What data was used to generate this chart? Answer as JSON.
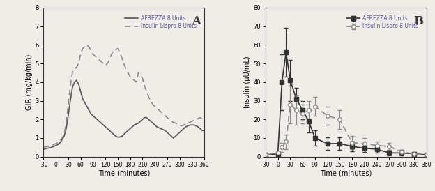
{
  "panel_a": {
    "title": "A",
    "xlabel": "Time (minutes)",
    "ylabel": "GIR (mg/kg/min)",
    "xlim": [
      -30,
      360
    ],
    "ylim": [
      0,
      8
    ],
    "xticks": [
      -30,
      0,
      30,
      60,
      90,
      120,
      150,
      180,
      210,
      240,
      270,
      300,
      330,
      360
    ],
    "yticks": [
      0,
      1,
      2,
      3,
      4,
      5,
      6,
      7,
      8
    ],
    "afrezza_x": [
      -30,
      -20,
      -10,
      0,
      5,
      10,
      15,
      20,
      25,
      30,
      35,
      40,
      45,
      50,
      55,
      60,
      65,
      70,
      75,
      80,
      85,
      90,
      95,
      100,
      105,
      110,
      115,
      120,
      125,
      130,
      135,
      140,
      145,
      150,
      155,
      160,
      165,
      170,
      175,
      180,
      185,
      190,
      195,
      200,
      205,
      210,
      215,
      220,
      225,
      230,
      235,
      240,
      245,
      250,
      255,
      260,
      265,
      270,
      275,
      280,
      285,
      290,
      295,
      300,
      305,
      310,
      315,
      320,
      325,
      330,
      335,
      340,
      345,
      350,
      355,
      360
    ],
    "afrezza_y": [
      0.4,
      0.45,
      0.5,
      0.6,
      0.65,
      0.75,
      0.9,
      1.1,
      1.5,
      2.2,
      3.0,
      3.7,
      4.0,
      4.1,
      3.9,
      3.5,
      3.1,
      2.9,
      2.7,
      2.5,
      2.3,
      2.2,
      2.1,
      2.0,
      1.9,
      1.8,
      1.7,
      1.6,
      1.5,
      1.4,
      1.3,
      1.2,
      1.1,
      1.05,
      1.05,
      1.1,
      1.2,
      1.3,
      1.4,
      1.5,
      1.6,
      1.7,
      1.75,
      1.8,
      1.9,
      2.0,
      2.1,
      2.1,
      2.0,
      1.9,
      1.8,
      1.7,
      1.6,
      1.55,
      1.5,
      1.45,
      1.4,
      1.3,
      1.2,
      1.1,
      1.0,
      1.1,
      1.2,
      1.3,
      1.4,
      1.5,
      1.6,
      1.65,
      1.7,
      1.7,
      1.7,
      1.65,
      1.6,
      1.5,
      1.4,
      1.4
    ],
    "lispro_x": [
      -30,
      -20,
      -10,
      0,
      5,
      10,
      15,
      20,
      25,
      30,
      35,
      40,
      45,
      50,
      55,
      60,
      65,
      70,
      75,
      80,
      85,
      90,
      95,
      100,
      105,
      110,
      115,
      120,
      125,
      130,
      135,
      140,
      145,
      150,
      155,
      160,
      165,
      170,
      175,
      180,
      185,
      190,
      195,
      200,
      205,
      210,
      215,
      220,
      225,
      230,
      235,
      240,
      245,
      250,
      255,
      260,
      265,
      270,
      275,
      280,
      285,
      290,
      295,
      300,
      305,
      310,
      315,
      320,
      325,
      330,
      335,
      340,
      345,
      350,
      355,
      360
    ],
    "lispro_y": [
      0.5,
      0.55,
      0.6,
      0.7,
      0.75,
      0.85,
      1.0,
      1.2,
      1.8,
      2.8,
      3.8,
      4.5,
      4.7,
      4.8,
      5.0,
      5.5,
      5.8,
      5.9,
      6.0,
      5.9,
      5.7,
      5.5,
      5.4,
      5.3,
      5.2,
      5.1,
      5.0,
      4.9,
      5.0,
      5.2,
      5.5,
      5.7,
      5.75,
      5.8,
      5.6,
      5.3,
      5.0,
      4.7,
      4.5,
      4.3,
      4.2,
      4.1,
      4.0,
      4.5,
      4.4,
      4.2,
      3.8,
      3.5,
      3.2,
      3.0,
      2.8,
      2.7,
      2.6,
      2.5,
      2.4,
      2.3,
      2.2,
      2.1,
      2.0,
      1.9,
      1.85,
      1.8,
      1.75,
      1.7,
      1.65,
      1.7,
      1.75,
      1.8,
      1.85,
      1.9,
      1.95,
      2.0,
      2.05,
      2.1,
      2.0,
      1.9
    ],
    "afrezza_color": "#555555",
    "lispro_color": "#888888",
    "legend_afrezza": "AFREZZA 8 Units",
    "legend_lispro": "Insulin Lispro 8 Units"
  },
  "panel_b": {
    "title": "B",
    "xlabel": "Time (minutes)",
    "ylabel": "Insulin (μU/mL)",
    "xlim": [
      -30,
      360
    ],
    "ylim": [
      0,
      80
    ],
    "xticks": [
      -30,
      0,
      30,
      60,
      90,
      120,
      150,
      180,
      210,
      240,
      270,
      300,
      330,
      360
    ],
    "yticks": [
      0,
      10,
      20,
      30,
      40,
      50,
      60,
      70,
      80
    ],
    "afrezza_x": [
      -30,
      0,
      10,
      20,
      30,
      45,
      60,
      75,
      90,
      120,
      150,
      180,
      210,
      240,
      270,
      300,
      330,
      360
    ],
    "afrezza_y": [
      1.0,
      1.5,
      40.0,
      56.0,
      41.0,
      31.0,
      25.0,
      19.0,
      10.0,
      7.0,
      7.0,
      5.5,
      4.5,
      4.0,
      2.0,
      2.0,
      1.5,
      1.0
    ],
    "afrezza_yerr": [
      0.5,
      0.5,
      15.0,
      13.0,
      11.0,
      6.0,
      5.0,
      6.0,
      4.0,
      3.5,
      3.5,
      2.5,
      2.0,
      2.0,
      1.5,
      1.5,
      1.0,
      0.5
    ],
    "lispro_x": [
      -30,
      0,
      10,
      20,
      30,
      45,
      60,
      75,
      90,
      120,
      150,
      180,
      210,
      240,
      270,
      300,
      330,
      360
    ],
    "lispro_y": [
      1.0,
      2.0,
      5.0,
      8.0,
      28.0,
      25.0,
      23.0,
      25.0,
      27.0,
      22.0,
      20.0,
      7.5,
      7.0,
      6.0,
      5.5,
      2.5,
      1.5,
      1.0
    ],
    "lispro_yerr": [
      0.5,
      1.0,
      2.5,
      4.0,
      10.0,
      8.0,
      5.0,
      5.0,
      5.0,
      5.0,
      5.0,
      3.5,
      3.0,
      2.0,
      2.0,
      1.0,
      0.5,
      0.5
    ],
    "afrezza_color": "#333333",
    "lispro_color": "#888888",
    "legend_afrezza": "AFREZZA 8 Units",
    "legend_lispro": "Insulin Lispro 8 Units"
  },
  "bg_color": "#f0ede8",
  "figure_bg": "#f0ede8"
}
